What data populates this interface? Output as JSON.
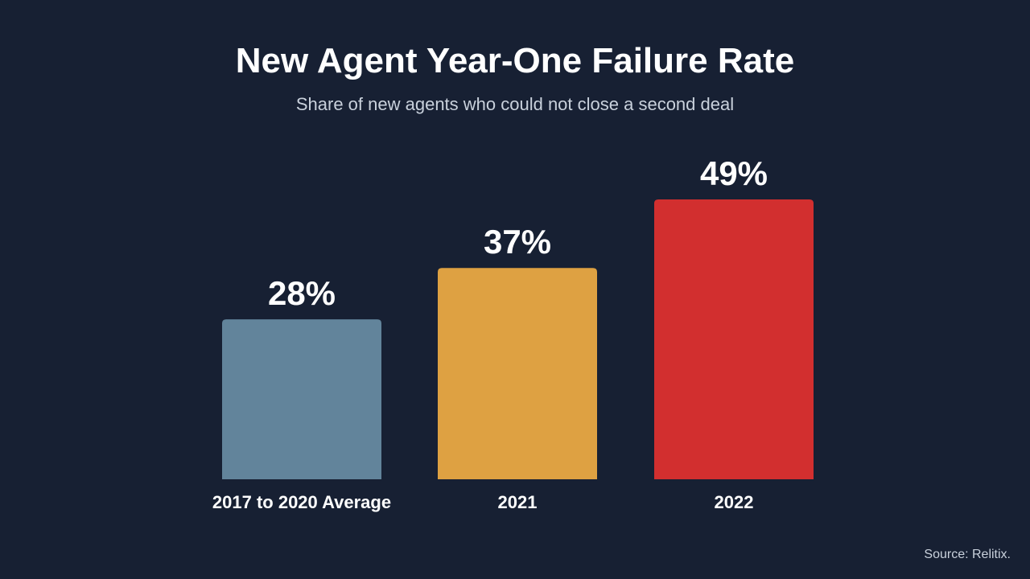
{
  "title": "New Agent Year-One Failure Rate",
  "subtitle": "Share of new agents who could not close a second deal",
  "source": "Source: Relitix.",
  "colors": {
    "background": "#172033",
    "text": "#ffffff",
    "muted_text": "#c9d1dc"
  },
  "chart_data": {
    "type": "bar",
    "title": "New Agent Year-One Failure Rate",
    "subtitle": "Share of new agents who could not close a second deal",
    "categories": [
      "2017 to 2020 Average",
      "2021",
      "2022"
    ],
    "values": [
      28,
      37,
      49
    ],
    "value_labels": [
      "28%",
      "37%",
      "49%"
    ],
    "colors": [
      "#62849b",
      "#dea142",
      "#d22f2f"
    ],
    "xlabel": "",
    "ylabel": "",
    "ylim": [
      0,
      49
    ],
    "grid": false,
    "legend": "none"
  }
}
